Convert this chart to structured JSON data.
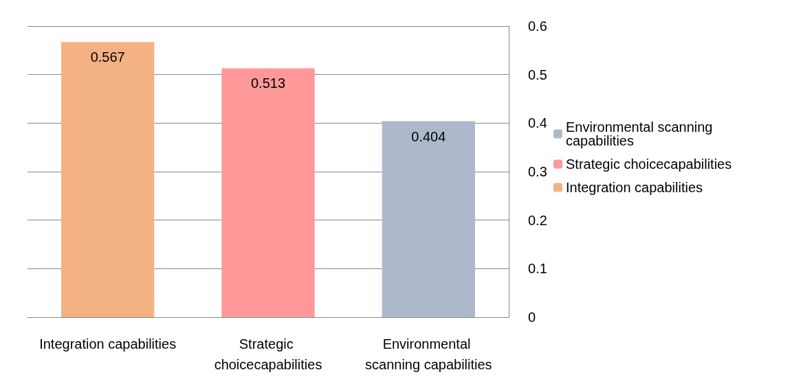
{
  "chart_data": {
    "type": "bar",
    "categories": [
      "Integration capabilities",
      "Strategic choicecapabilities",
      "Environmental scanning capabilities"
    ],
    "series": [
      {
        "name": "Integration capabilities",
        "color": "#f4b183",
        "values": [
          0.567,
          null,
          null
        ]
      },
      {
        "name": "Strategic choicecapabilities",
        "color": "#ff9999",
        "values": [
          null,
          0.513,
          null
        ]
      },
      {
        "name": "Environmental scanning capabilities",
        "color": "#adb9ca",
        "values": [
          null,
          null,
          0.404
        ]
      }
    ],
    "ylim": [
      0,
      0.6
    ],
    "yticks": [
      0,
      0.1,
      0.2,
      0.3,
      0.4,
      0.5,
      0.6
    ],
    "grid": "y",
    "legend": "right",
    "data_labels": true
  }
}
